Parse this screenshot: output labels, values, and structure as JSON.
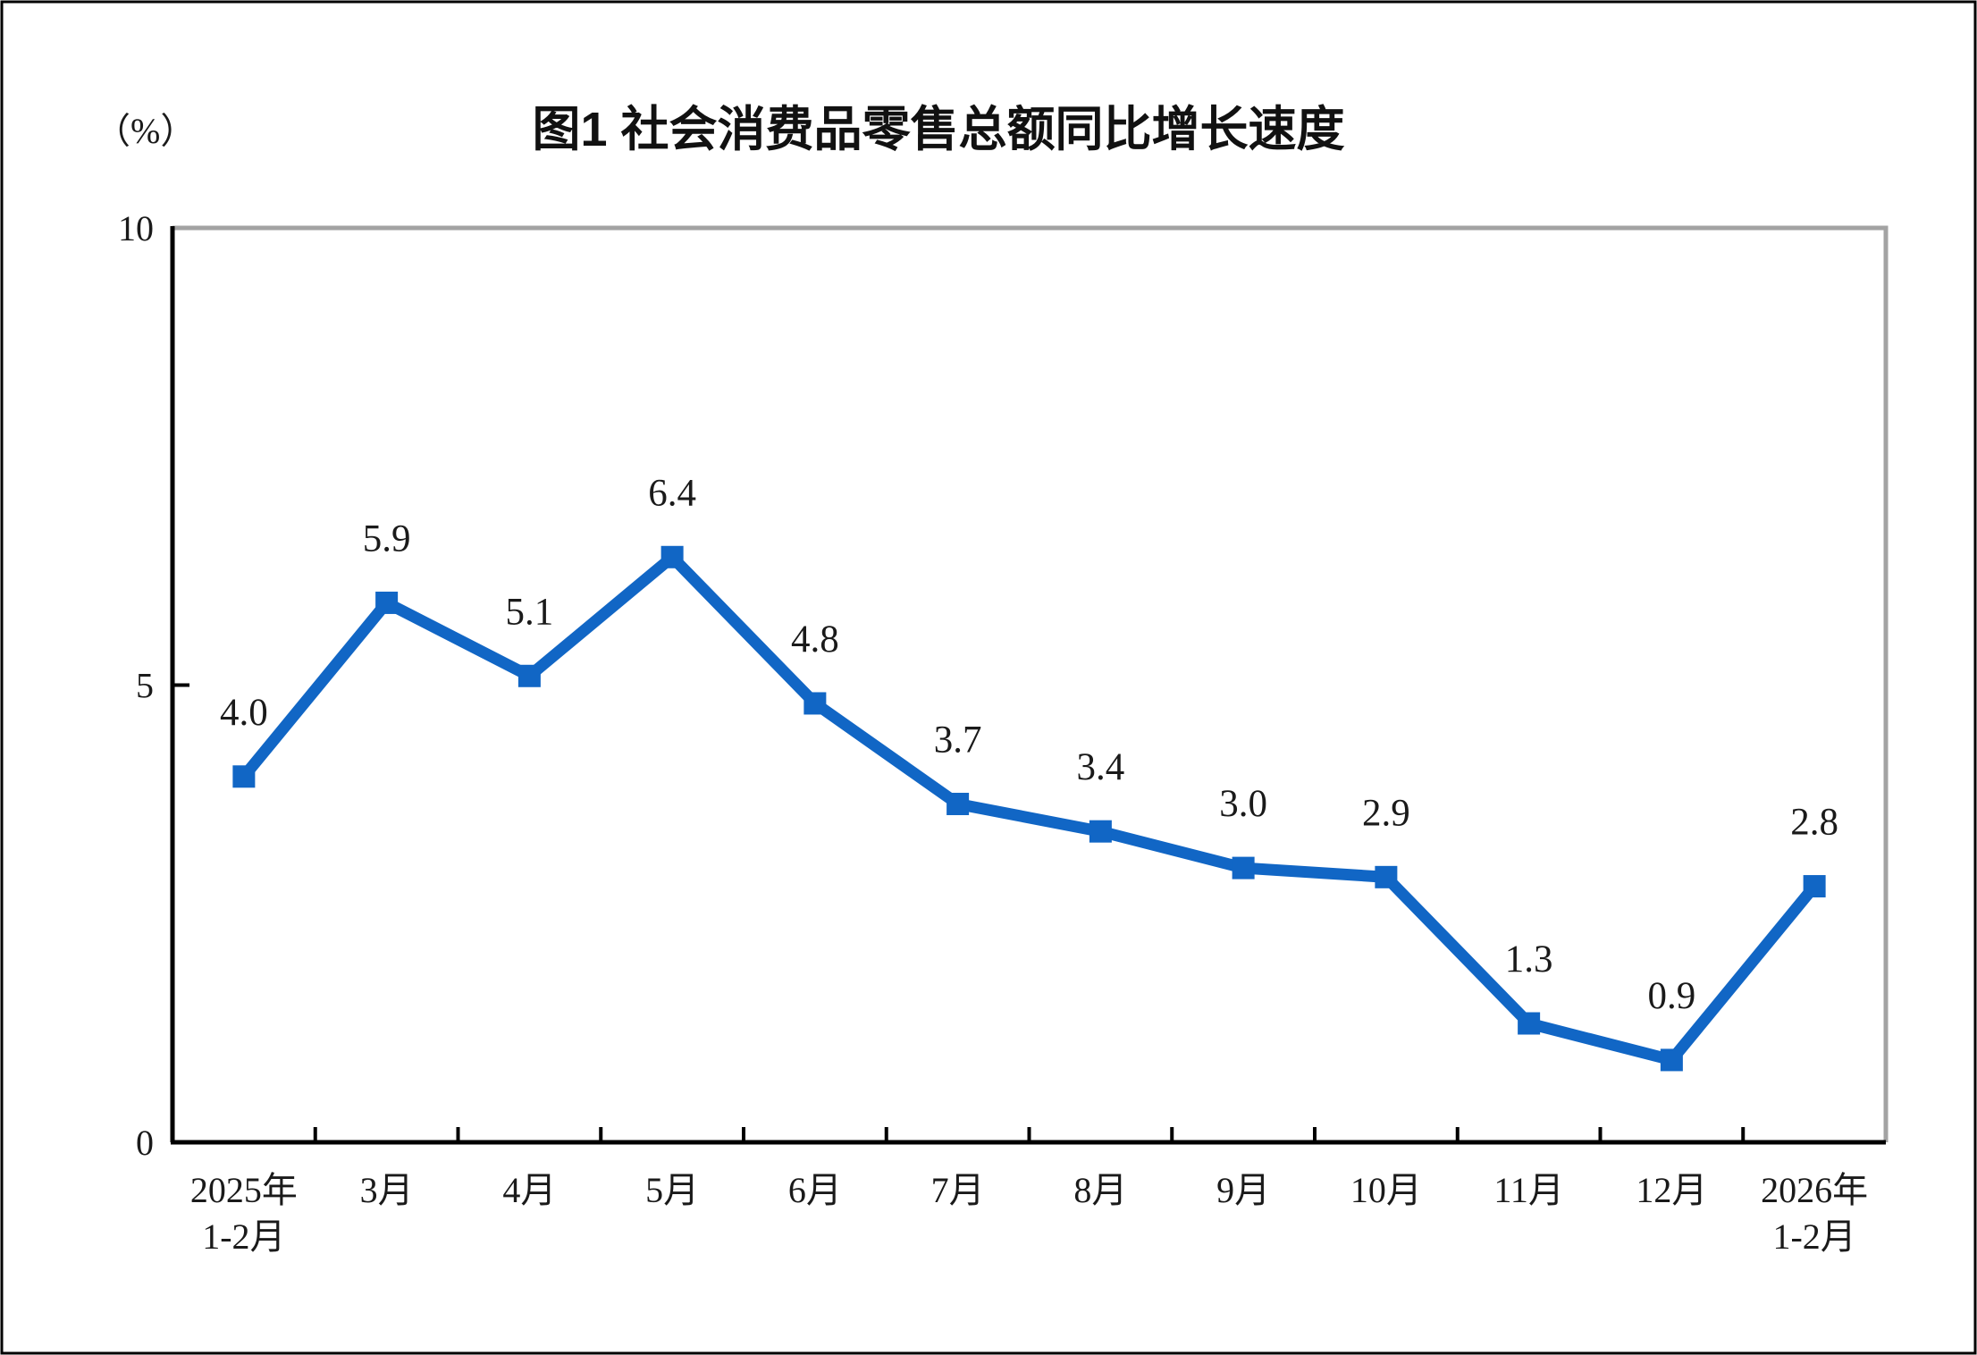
{
  "figure": {
    "unit_label": "（%）",
    "title": "图1  社会消费品零售总额同比增长速度"
  },
  "chart_data": {
    "type": "line",
    "title": "图1  社会消费品零售总额同比增长速度",
    "ylabel": "（%）",
    "xlabel": "",
    "categories": [
      "2025年\n1-2月",
      "3月",
      "4月",
      "5月",
      "6月",
      "7月",
      "8月",
      "9月",
      "10月",
      "11月",
      "12月",
      "2026年\n1-2月"
    ],
    "values": [
      4.0,
      5.9,
      5.1,
      6.4,
      4.8,
      3.7,
      3.4,
      3.0,
      2.9,
      1.3,
      0.9,
      2.8
    ],
    "data_labels": [
      "4.0",
      "5.9",
      "5.1",
      "6.4",
      "4.8",
      "3.7",
      "3.4",
      "3.0",
      "2.9",
      "1.3",
      "0.9",
      "2.8"
    ],
    "y_ticks": [
      0,
      5,
      10
    ],
    "ylim": [
      0,
      10
    ],
    "grid": false,
    "legend_position": "none",
    "marker": "square",
    "colors": {
      "line": "#1166C5",
      "marker": "#1166C5",
      "axis": "#000000",
      "plot_border_gray": "#A3A3A3",
      "text": "#1a1a1a",
      "outer_border": "#000000"
    }
  }
}
